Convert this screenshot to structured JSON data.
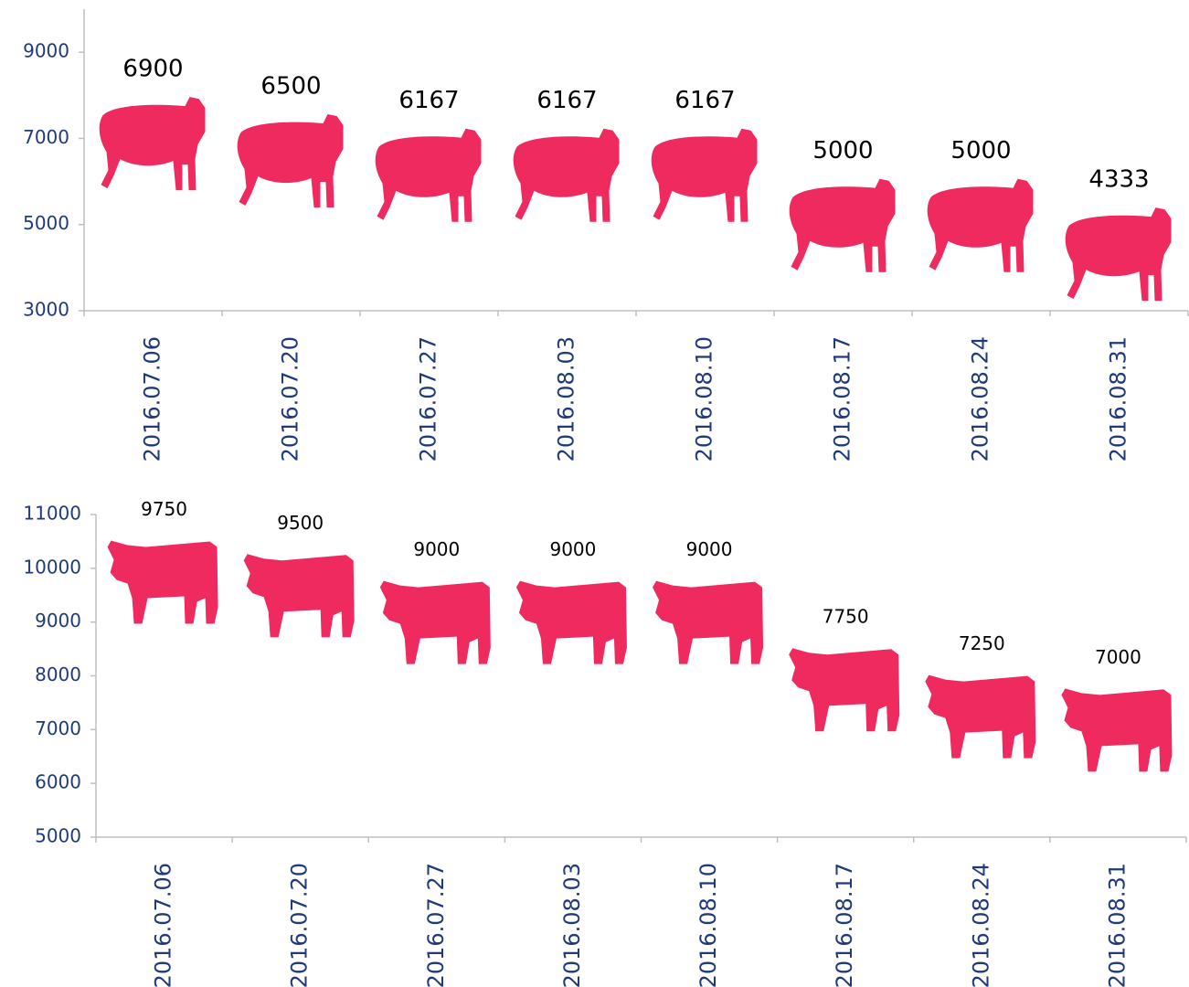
{
  "chart_data": [
    {
      "type": "pictograph",
      "marker": "sheep",
      "color": "#ee2a5e",
      "categories": [
        "2016.07.06",
        "2016.07.20",
        "2016.07.27",
        "2016.08.03",
        "2016.08.10",
        "2016.08.17",
        "2016.08.24",
        "2016.08.31"
      ],
      "values": [
        6900,
        6500,
        6167,
        6167,
        6167,
        5000,
        5000,
        4333
      ],
      "ylim": [
        3000,
        10000
      ],
      "yticks": [
        3000,
        5000,
        7000,
        9000
      ]
    },
    {
      "type": "pictograph",
      "marker": "cow",
      "color": "#ee2a5e",
      "categories": [
        "2016.07.06",
        "2016.07.20",
        "2016.07.27",
        "2016.08.03",
        "2016.08.10",
        "2016.08.17",
        "2016.08.24",
        "2016.08.31"
      ],
      "values": [
        9750,
        9500,
        9000,
        9000,
        9000,
        7750,
        7250,
        7000
      ],
      "ylim": [
        5000,
        11000
      ],
      "yticks": [
        5000,
        6000,
        7000,
        8000,
        9000,
        10000,
        11000
      ]
    }
  ]
}
